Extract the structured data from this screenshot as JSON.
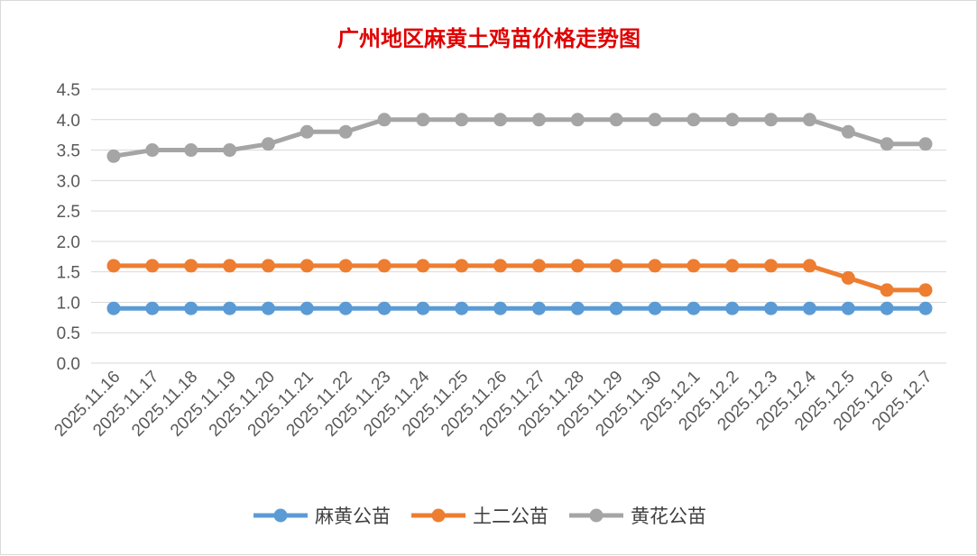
{
  "chart_data": {
    "type": "line",
    "title": "广州地区麻黄土鸡苗价格走势图",
    "xlabel": "",
    "ylabel": "",
    "ylim": [
      0,
      4.5
    ],
    "yticks": [
      "0.0",
      "0.5",
      "1.0",
      "1.5",
      "2.0",
      "2.5",
      "3.0",
      "3.5",
      "4.0",
      "4.5"
    ],
    "grid": true,
    "legend_position": "bottom",
    "categories": [
      "2025.11.16",
      "2025.11.17",
      "2025.11.18",
      "2025.11.19",
      "2025.11.20",
      "2025.11.21",
      "2025.11.22",
      "2025.11.23",
      "2025.11.24",
      "2025.11.25",
      "2025.11.26",
      "2025.11.27",
      "2025.11.28",
      "2025.11.29",
      "2025.11.30",
      "2025.12.1",
      "2025.12.2",
      "2025.12.3",
      "2025.12.4",
      "2025.12.5",
      "2025.12.6",
      "2025.12.7"
    ],
    "series": [
      {
        "name": "麻黄公苗",
        "color": "#5b9bd5",
        "values": [
          0.9,
          0.9,
          0.9,
          0.9,
          0.9,
          0.9,
          0.9,
          0.9,
          0.9,
          0.9,
          0.9,
          0.9,
          0.9,
          0.9,
          0.9,
          0.9,
          0.9,
          0.9,
          0.9,
          0.9,
          0.9,
          0.9
        ]
      },
      {
        "name": "土二公苗",
        "color": "#ed7d31",
        "values": [
          1.6,
          1.6,
          1.6,
          1.6,
          1.6,
          1.6,
          1.6,
          1.6,
          1.6,
          1.6,
          1.6,
          1.6,
          1.6,
          1.6,
          1.6,
          1.6,
          1.6,
          1.6,
          1.6,
          1.4,
          1.2,
          1.2
        ]
      },
      {
        "name": "黄花公苗",
        "color": "#a5a5a5",
        "values": [
          3.4,
          3.5,
          3.5,
          3.5,
          3.6,
          3.8,
          3.8,
          4.0,
          4.0,
          4.0,
          4.0,
          4.0,
          4.0,
          4.0,
          4.0,
          4.0,
          4.0,
          4.0,
          4.0,
          3.8,
          3.6,
          3.6
        ]
      }
    ]
  }
}
